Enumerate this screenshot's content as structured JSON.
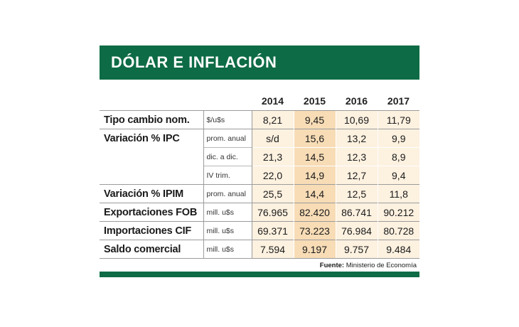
{
  "title": "DÓLAR E INFLACIÓN",
  "colors": {
    "brand_green": "#0d6b45",
    "cell_light": "#fdf1e0",
    "cell_highlight": "#f7dcb6"
  },
  "years": [
    "2014",
    "2015",
    "2016",
    "2017"
  ],
  "rows": [
    {
      "label": "Tipo cambio nom.",
      "unit": "$/u$s",
      "values": [
        "8,21",
        "9,45",
        "10,69",
        "11,79"
      ]
    },
    {
      "label": "Variación % IPC",
      "unit": "prom. anual",
      "values": [
        "s/d",
        "15,6",
        "13,2",
        "9,9"
      ]
    },
    {
      "label": "",
      "unit": "dic. a dic.",
      "values": [
        "21,3",
        "14,5",
        "12,3",
        "8,9"
      ]
    },
    {
      "label": "",
      "unit": "IV trim.",
      "values": [
        "22,0",
        "14,9",
        "12,7",
        "9,4"
      ]
    },
    {
      "label": "Variación % IPIM",
      "unit": "prom. anual",
      "values": [
        "25,5",
        "14,4",
        "12,5",
        "11,8"
      ]
    },
    {
      "label": "Exportaciones FOB",
      "unit": "mill. u$s",
      "values": [
        "76.965",
        "82.420",
        "86.741",
        "90.212"
      ]
    },
    {
      "label": "Importaciones CIF",
      "unit": "mill. u$s",
      "values": [
        "69.371",
        "73.223",
        "76.984",
        "80.728"
      ]
    },
    {
      "label": "Saldo comercial",
      "unit": "mill. u$s",
      "values": [
        "7.594",
        "9.197",
        "9.757",
        "9.484"
      ]
    }
  ],
  "source": {
    "prefix": "Fuente:",
    "text": "Ministerio de Economía"
  }
}
